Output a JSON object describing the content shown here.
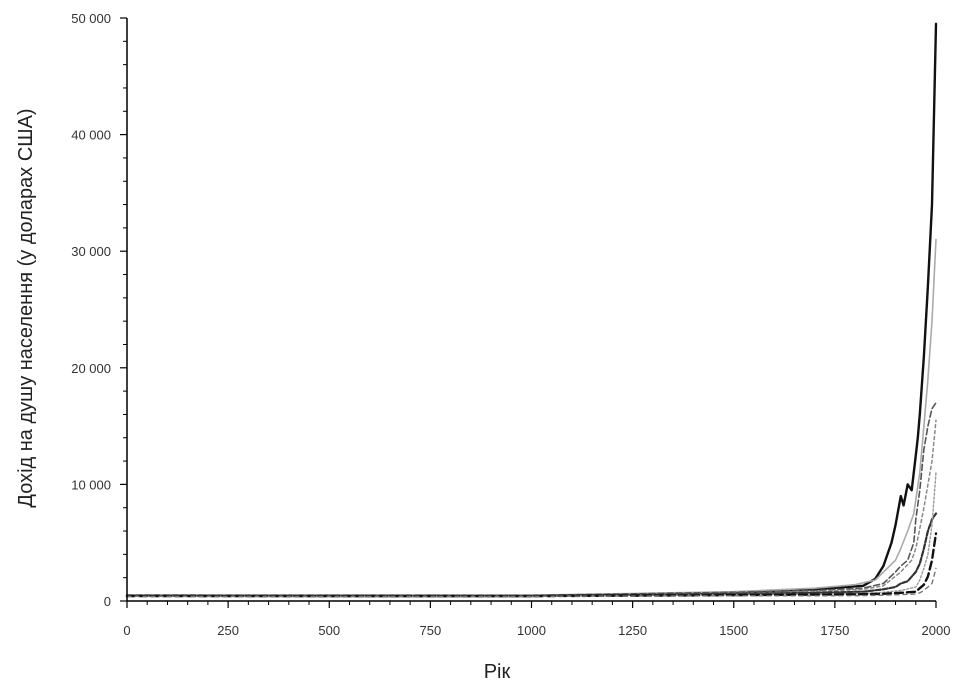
{
  "chart_data": {
    "type": "line",
    "title": "",
    "xlabel": "Рік",
    "ylabel": "Дохід на душу населення (у доларах США)",
    "xlim": [
      0,
      2000
    ],
    "ylim": [
      0,
      50000
    ],
    "x_ticks": [
      0,
      250,
      500,
      750,
      1000,
      1250,
      1500,
      1750,
      2000
    ],
    "y_ticks": [
      0,
      10000,
      20000,
      30000,
      40000,
      50000
    ],
    "x_tick_labels": [
      "0",
      "250",
      "500",
      "750",
      "1000",
      "1250",
      "1500",
      "1750",
      "2000"
    ],
    "y_tick_labels": [
      "0",
      "10 000",
      "20 000",
      "30 000",
      "40 000",
      "50 000"
    ],
    "grid": false,
    "legend": "none",
    "series": [
      {
        "color": "#111111",
        "dash": "solid",
        "width": 2.4,
        "points": [
          [
            0,
            450
          ],
          [
            1000,
            420
          ],
          [
            1500,
            700
          ],
          [
            1700,
            1000
          ],
          [
            1820,
            1300
          ],
          [
            1850,
            1900
          ],
          [
            1870,
            3000
          ],
          [
            1890,
            5000
          ],
          [
            1900,
            6500
          ],
          [
            1913,
            9000
          ],
          [
            1920,
            8200
          ],
          [
            1930,
            10000
          ],
          [
            1940,
            9500
          ],
          [
            1950,
            12500
          ],
          [
            1955,
            14000
          ],
          [
            1960,
            16000
          ],
          [
            1970,
            21000
          ],
          [
            1980,
            27000
          ],
          [
            1990,
            34000
          ],
          [
            2000,
            49500
          ]
        ]
      },
      {
        "color": "#aaaaaa",
        "dash": "solid",
        "width": 1.6,
        "points": [
          [
            0,
            520
          ],
          [
            1000,
            500
          ],
          [
            1500,
            800
          ],
          [
            1700,
            1100
          ],
          [
            1800,
            1400
          ],
          [
            1850,
            1800
          ],
          [
            1900,
            3500
          ],
          [
            1913,
            4500
          ],
          [
            1930,
            6000
          ],
          [
            1945,
            7500
          ],
          [
            1960,
            11000
          ],
          [
            1970,
            15000
          ],
          [
            1980,
            19000
          ],
          [
            1990,
            24000
          ],
          [
            2000,
            31000
          ]
        ]
      },
      {
        "color": "#555555",
        "dash": "6,3",
        "width": 1.6,
        "points": [
          [
            0,
            500
          ],
          [
            1000,
            480
          ],
          [
            1500,
            750
          ],
          [
            1700,
            900
          ],
          [
            1820,
            1100
          ],
          [
            1870,
            1500
          ],
          [
            1900,
            2500
          ],
          [
            1913,
            3000
          ],
          [
            1930,
            3500
          ],
          [
            1945,
            5000
          ],
          [
            1950,
            7000
          ],
          [
            1960,
            9500
          ],
          [
            1970,
            13000
          ],
          [
            1980,
            15000
          ],
          [
            1990,
            16500
          ],
          [
            2000,
            17000
          ]
        ]
      },
      {
        "color": "#888888",
        "dash": "3,3",
        "width": 1.5,
        "points": [
          [
            0,
            430
          ],
          [
            1000,
            430
          ],
          [
            1500,
            650
          ],
          [
            1700,
            800
          ],
          [
            1820,
            1000
          ],
          [
            1870,
            1300
          ],
          [
            1913,
            2500
          ],
          [
            1940,
            3500
          ],
          [
            1950,
            4500
          ],
          [
            1970,
            8000
          ],
          [
            1990,
            12000
          ],
          [
            2000,
            15500
          ]
        ]
      },
      {
        "color": "#333333",
        "dash": "5,2",
        "width": 2.2,
        "points": [
          [
            0,
            450
          ],
          [
            1000,
            450
          ],
          [
            1500,
            600
          ],
          [
            1700,
            700
          ],
          [
            1820,
            800
          ],
          [
            1870,
            1000
          ],
          [
            1900,
            1200
          ],
          [
            1913,
            1500
          ],
          [
            1930,
            1700
          ],
          [
            1950,
            2500
          ],
          [
            1960,
            3200
          ],
          [
            1970,
            4500
          ],
          [
            1980,
            6000
          ],
          [
            1990,
            7000
          ],
          [
            2000,
            7500
          ]
        ]
      },
      {
        "color": "#999999",
        "dash": "2,2",
        "width": 1.4,
        "points": [
          [
            0,
            400
          ],
          [
            1000,
            400
          ],
          [
            1500,
            550
          ],
          [
            1700,
            600
          ],
          [
            1820,
            650
          ],
          [
            1870,
            750
          ],
          [
            1913,
            900
          ],
          [
            1950,
            1200
          ],
          [
            1960,
            1800
          ],
          [
            1970,
            2800
          ],
          [
            1980,
            4000
          ],
          [
            1990,
            6500
          ],
          [
            2000,
            11000
          ]
        ]
      },
      {
        "color": "#111111",
        "dash": "8,4",
        "width": 2.4,
        "points": [
          [
            0,
            420
          ],
          [
            1000,
            420
          ],
          [
            1500,
            500
          ],
          [
            1700,
            550
          ],
          [
            1820,
            580
          ],
          [
            1870,
            620
          ],
          [
            1913,
            700
          ],
          [
            1950,
            800
          ],
          [
            1960,
            1100
          ],
          [
            1970,
            1400
          ],
          [
            1980,
            2100
          ],
          [
            1990,
            3500
          ],
          [
            2000,
            5800
          ]
        ]
      },
      {
        "color": "#777777",
        "dash": "4,4",
        "width": 1.4,
        "points": [
          [
            0,
            400
          ],
          [
            1000,
            400
          ],
          [
            1500,
            450
          ],
          [
            1700,
            450
          ],
          [
            1820,
            460
          ],
          [
            1870,
            500
          ],
          [
            1913,
            550
          ],
          [
            1950,
            600
          ],
          [
            1960,
            700
          ],
          [
            1970,
            900
          ],
          [
            1980,
            1200
          ],
          [
            1990,
            1500
          ],
          [
            2000,
            2800
          ]
        ]
      }
    ]
  }
}
